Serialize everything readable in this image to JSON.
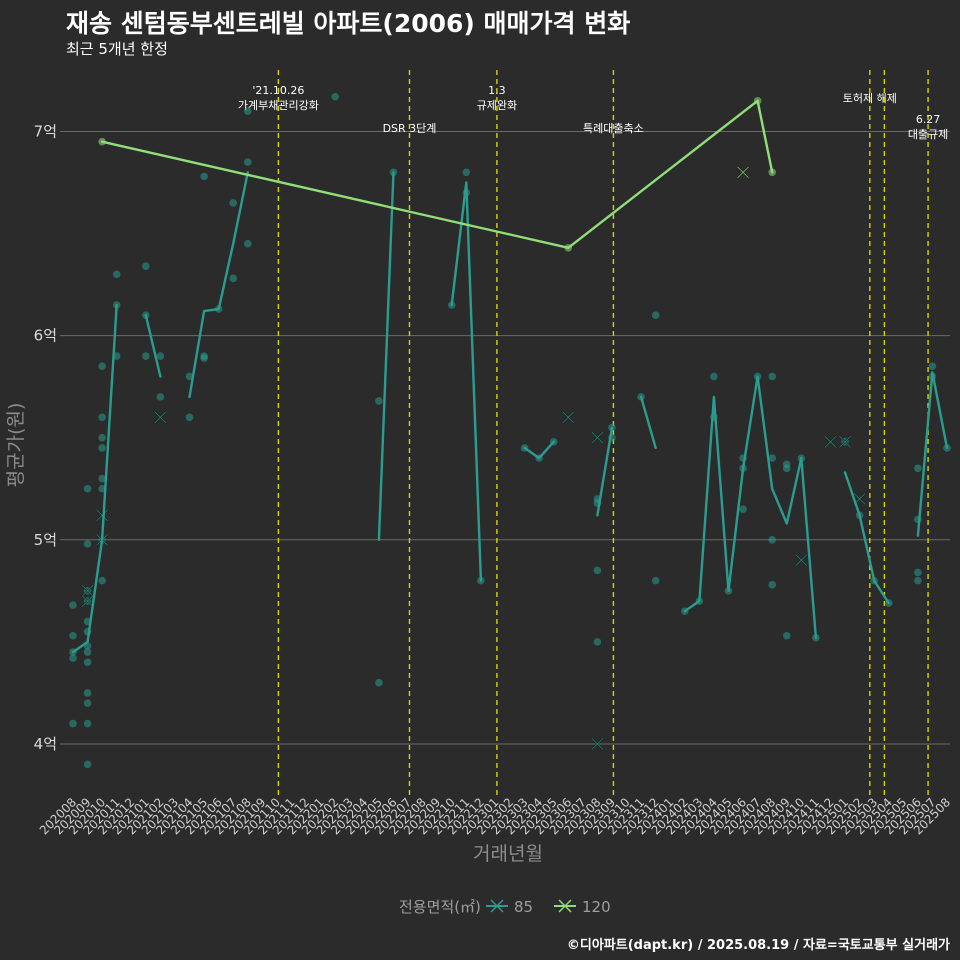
{
  "header": {
    "title": "재송 센텀동부센트레빌 아파트(2006) 매매가격 변화",
    "subtitle": "최근 5개년 한정"
  },
  "footer": {
    "caption": "©디아파트(dapt.kr) / 2025.08.19 / 자료=국토교통부 실거래가"
  },
  "colors": {
    "background": "#2b2b2b",
    "grid": "#6a6a6a",
    "event_line": "#d4d400",
    "series_85": "#2a9d8f",
    "series_120": "#8fde7a"
  },
  "chart_data": {
    "type": "line",
    "xlabel": "거래년월",
    "ylabel": "평균가(원)",
    "ylim": [
      3.75,
      7.35
    ],
    "y_ticks": [
      {
        "value": 4,
        "label": "4억"
      },
      {
        "value": 5,
        "label": "5억"
      },
      {
        "value": 6,
        "label": "6억"
      },
      {
        "value": 7,
        "label": "7억"
      }
    ],
    "x_categories": [
      "202008",
      "202009",
      "202010",
      "202011",
      "202012",
      "202101",
      "202102",
      "202103",
      "202104",
      "202105",
      "202106",
      "202107",
      "202108",
      "202109",
      "202110",
      "202111",
      "202112",
      "202201",
      "202202",
      "202203",
      "202204",
      "202205",
      "202206",
      "202207",
      "202208",
      "202209",
      "202210",
      "202211",
      "202212",
      "202301",
      "202302",
      "202303",
      "202304",
      "202305",
      "202306",
      "202307",
      "202308",
      "202309",
      "202310",
      "202311",
      "202312",
      "202401",
      "202402",
      "202403",
      "202404",
      "202405",
      "202406",
      "202407",
      "202408",
      "202409",
      "202410",
      "202411",
      "202412",
      "202501",
      "202502",
      "202503",
      "202504",
      "202505",
      "202506",
      "202507",
      "202508"
    ],
    "events": [
      {
        "x": 14.1,
        "lines": [
          "'21.10.26",
          "가계부채관리강화"
        ],
        "label_level": 0
      },
      {
        "x": 23.1,
        "lines": [
          "DSR 3단계"
        ],
        "label_level": 2
      },
      {
        "x": 29.1,
        "lines": [
          "1.3",
          "규제완화"
        ],
        "label_level": 0
      },
      {
        "x": 37.1,
        "lines": [
          "특례대출축소"
        ],
        "label_level": 2
      },
      {
        "x": 54.7,
        "lines": [
          "토허제 해제"
        ],
        "label_level": 1
      },
      {
        "x": 55.7,
        "lines": [],
        "label_level": 1
      },
      {
        "x": 58.7,
        "lines": [
          "6.27",
          "대출규제"
        ],
        "label_level": 3
      }
    ],
    "legend": {
      "title": "전용면적(㎡)",
      "placement": "bottom",
      "items": [
        {
          "name": "85",
          "color": "#2a9d8f"
        },
        {
          "name": "120",
          "color": "#8fde7a"
        }
      ]
    },
    "series": [
      {
        "name": "85",
        "color": "#2a9d8f",
        "line": [
          [
            0,
            4.45
          ],
          [
            1,
            4.5
          ],
          [
            2,
            5.0
          ],
          [
            3,
            6.15
          ],
          [
            null,
            null
          ],
          [
            5,
            6.1
          ],
          [
            6,
            5.8
          ],
          [
            null,
            null
          ],
          [
            8,
            5.7
          ],
          [
            9,
            6.12
          ],
          [
            10,
            6.13
          ],
          [
            11,
            6.45
          ],
          [
            12,
            6.8
          ],
          [
            null,
            null
          ],
          [
            21,
            5.0
          ],
          [
            22,
            6.8
          ],
          [
            null,
            null
          ],
          [
            26,
            6.15
          ],
          [
            27,
            6.75
          ],
          [
            28,
            4.8
          ],
          [
            null,
            null
          ],
          [
            31,
            5.45
          ],
          [
            32,
            5.4
          ],
          [
            33,
            5.48
          ],
          [
            null,
            null
          ],
          [
            36,
            5.12
          ],
          [
            37,
            5.55
          ],
          [
            null,
            null
          ],
          [
            39,
            5.7
          ],
          [
            40,
            5.45
          ],
          [
            null,
            null
          ],
          [
            42,
            4.65
          ],
          [
            43,
            4.7
          ],
          [
            44,
            5.7
          ],
          [
            45,
            4.75
          ],
          [
            46,
            5.35
          ],
          [
            47,
            5.8
          ],
          [
            48,
            5.25
          ],
          [
            49,
            5.08
          ],
          [
            50,
            5.4
          ],
          [
            51,
            4.52
          ],
          [
            null,
            null
          ],
          [
            53,
            5.33
          ],
          [
            54,
            5.12
          ],
          [
            55,
            4.8
          ],
          [
            56,
            4.69
          ],
          [
            null,
            null
          ],
          [
            58,
            5.02
          ],
          [
            59,
            5.82
          ],
          [
            60,
            5.45
          ]
        ],
        "points": [
          [
            0,
            4.68
          ],
          [
            0,
            4.53
          ],
          [
            0,
            4.45
          ],
          [
            0,
            4.42
          ],
          [
            0,
            4.1
          ],
          [
            1,
            5.25
          ],
          [
            1,
            4.98
          ],
          [
            1,
            4.75
          ],
          [
            1,
            4.7
          ],
          [
            1,
            4.6
          ],
          [
            1,
            4.55
          ],
          [
            1,
            4.48
          ],
          [
            1,
            4.45
          ],
          [
            1,
            4.4
          ],
          [
            1,
            4.25
          ],
          [
            1,
            4.2
          ],
          [
            1,
            4.1
          ],
          [
            1,
            3.9
          ],
          [
            2,
            5.85
          ],
          [
            2,
            5.6
          ],
          [
            2,
            5.5
          ],
          [
            2,
            5.45
          ],
          [
            2,
            5.3
          ],
          [
            2,
            5.25
          ],
          [
            2,
            5.0
          ],
          [
            2,
            4.8
          ],
          [
            3,
            6.3
          ],
          [
            3,
            6.15
          ],
          [
            3,
            5.9
          ],
          [
            5,
            6.34
          ],
          [
            5,
            6.1
          ],
          [
            5,
            5.9
          ],
          [
            6,
            5.9
          ],
          [
            6,
            5.7
          ],
          [
            8,
            5.8
          ],
          [
            8,
            5.6
          ],
          [
            9,
            6.78
          ],
          [
            9,
            5.9
          ],
          [
            9,
            5.89
          ],
          [
            10,
            6.13
          ],
          [
            11,
            6.65
          ],
          [
            11,
            6.28
          ],
          [
            12,
            7.1
          ],
          [
            12,
            6.85
          ],
          [
            12,
            6.45
          ],
          [
            18,
            7.17
          ],
          [
            21,
            5.68
          ],
          [
            21,
            4.3
          ],
          [
            22,
            6.8
          ],
          [
            26,
            6.15
          ],
          [
            27,
            6.8
          ],
          [
            27,
            6.7
          ],
          [
            28,
            4.8
          ],
          [
            31,
            5.45
          ],
          [
            32,
            5.4
          ],
          [
            33,
            5.48
          ],
          [
            36,
            5.2
          ],
          [
            36,
            5.18
          ],
          [
            36,
            4.85
          ],
          [
            36,
            4.5
          ],
          [
            37,
            5.55
          ],
          [
            37,
            5.5
          ],
          [
            39,
            5.7
          ],
          [
            40,
            6.1
          ],
          [
            40,
            4.8
          ],
          [
            42,
            4.65
          ],
          [
            43,
            4.7
          ],
          [
            44,
            5.8
          ],
          [
            44,
            5.6
          ],
          [
            45,
            4.75
          ],
          [
            46,
            5.4
          ],
          [
            46,
            5.35
          ],
          [
            46,
            5.15
          ],
          [
            47,
            5.8
          ],
          [
            48,
            5.8
          ],
          [
            48,
            5.4
          ],
          [
            48,
            5.0
          ],
          [
            48,
            4.78
          ],
          [
            49,
            5.37
          ],
          [
            49,
            5.35
          ],
          [
            49,
            4.53
          ],
          [
            50,
            5.4
          ],
          [
            51,
            4.52
          ],
          [
            53,
            5.48
          ],
          [
            54,
            5.12
          ],
          [
            55,
            4.8
          ],
          [
            56,
            4.69
          ],
          [
            58,
            5.35
          ],
          [
            58,
            5.1
          ],
          [
            58,
            4.84
          ],
          [
            58,
            4.8
          ],
          [
            59,
            5.85
          ],
          [
            59,
            5.8
          ],
          [
            60,
            5.45
          ]
        ],
        "x_marks": [
          [
            1,
            4.75
          ],
          [
            1,
            4.7
          ],
          [
            2,
            5.12
          ],
          [
            2,
            5.0
          ],
          [
            6,
            5.6
          ],
          [
            34,
            5.6
          ],
          [
            36,
            5.5
          ],
          [
            36,
            4.0
          ],
          [
            50,
            4.9
          ],
          [
            52,
            5.48
          ],
          [
            53,
            5.48
          ],
          [
            54,
            5.2
          ]
        ]
      },
      {
        "name": "120",
        "color": "#8fde7a",
        "line": [
          [
            2,
            6.95
          ],
          [
            34,
            6.43
          ],
          [
            47,
            7.15
          ],
          [
            48,
            6.8
          ]
        ],
        "points": [
          [
            2,
            6.95
          ],
          [
            34,
            6.43
          ],
          [
            47,
            7.15
          ],
          [
            48,
            6.8
          ]
        ],
        "x_marks": [
          [
            46,
            6.8
          ]
        ]
      }
    ]
  }
}
